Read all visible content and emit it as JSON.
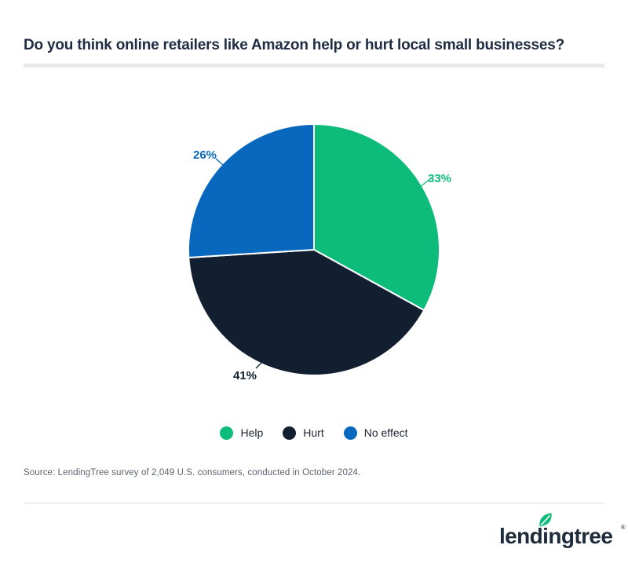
{
  "title": "Do you think online retailers like Amazon help or hurt local small businesses?",
  "chart_data": {
    "type": "pie",
    "title": "Do you think online retailers like Amazon help or hurt local small businesses?",
    "slices": [
      {
        "label": "Help",
        "value": 33,
        "display": "33%",
        "color": "#0dbc7a"
      },
      {
        "label": "Hurt",
        "value": 41,
        "display": "41%",
        "color": "#121f30"
      },
      {
        "label": "No effect",
        "value": 26,
        "display": "26%",
        "color": "#0868be"
      }
    ],
    "start_angle_deg": 0,
    "direction": "clockwise",
    "legend_position": "bottom",
    "data_labels": "outside-with-leader-lines"
  },
  "legend": {
    "items": [
      "Help",
      "Hurt",
      "No effect"
    ]
  },
  "source": "Source: LendingTree survey of 2,049 U.S. consumers, conducted in October 2024.",
  "footer": {
    "brand": "lendingtree",
    "trademark": "®",
    "leaf_color": "#0dbc7a",
    "text_color": "#1d2b3a"
  },
  "theme": {
    "background": "#ffffff",
    "title_color": "#202c42",
    "divider_color": "#e9e9e9",
    "footer_divider_color": "#dadada",
    "source_color": "#5a6470",
    "legend_text_color": "#1b2430"
  }
}
